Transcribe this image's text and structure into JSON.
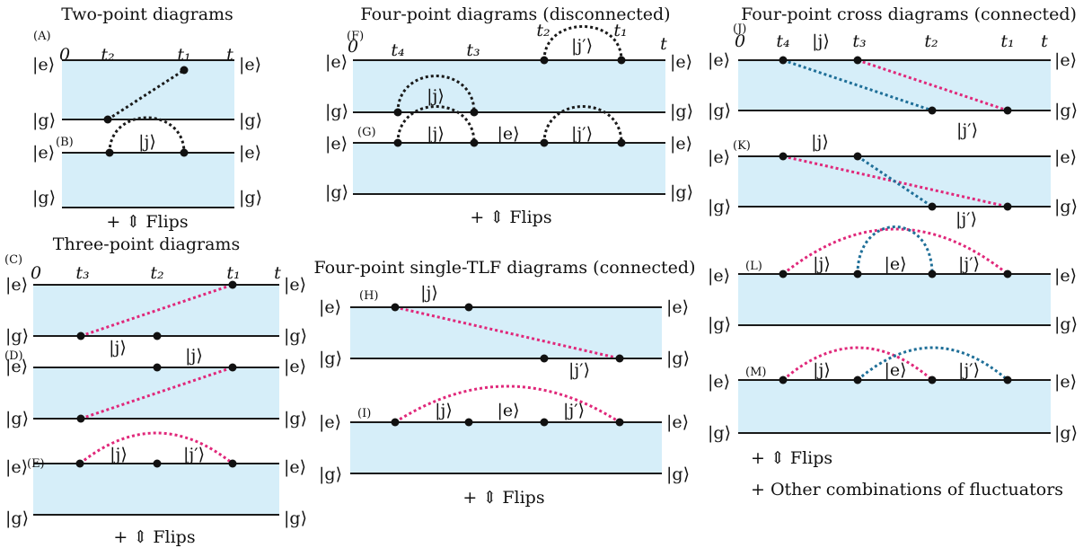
{
  "colors": {
    "band": "#d6eef9",
    "line": "#1a1a1a",
    "black_link": "#1a1a1a",
    "magenta_link": "#e0287a",
    "blue_link": "#1f6f98"
  },
  "titles": {
    "two_point": "Two-point diagrams",
    "three_point": "Three-point diagrams",
    "four_point_disconnected": "Four-point diagrams (disconnected)",
    "four_point_single_tlf": "Four-point single-TLF diagrams (connected)",
    "four_point_cross": "Four-point cross diagrams (connected)"
  },
  "states": {
    "e": "|e⟩",
    "g": "|g⟩",
    "j": "|j⟩",
    "jp": "|j′⟩"
  },
  "times": {
    "t": "t",
    "zero": "0",
    "t1": "t₁",
    "t2": "t₂",
    "t3": "t₃",
    "t4": "t₄"
  },
  "panels": {
    "A": "(A)",
    "B": "(B)",
    "C": "(C)",
    "D": "(D)",
    "E": "(E)",
    "F": "(F)",
    "G": "(G)",
    "H": "(H)",
    "I": "(I)",
    "J": "(J)",
    "K": "(K)",
    "L": "(L)",
    "M": "(M)"
  },
  "notes": {
    "flips": "+ ⇕ Flips",
    "other": "+  Other combinations of fluctuators"
  }
}
